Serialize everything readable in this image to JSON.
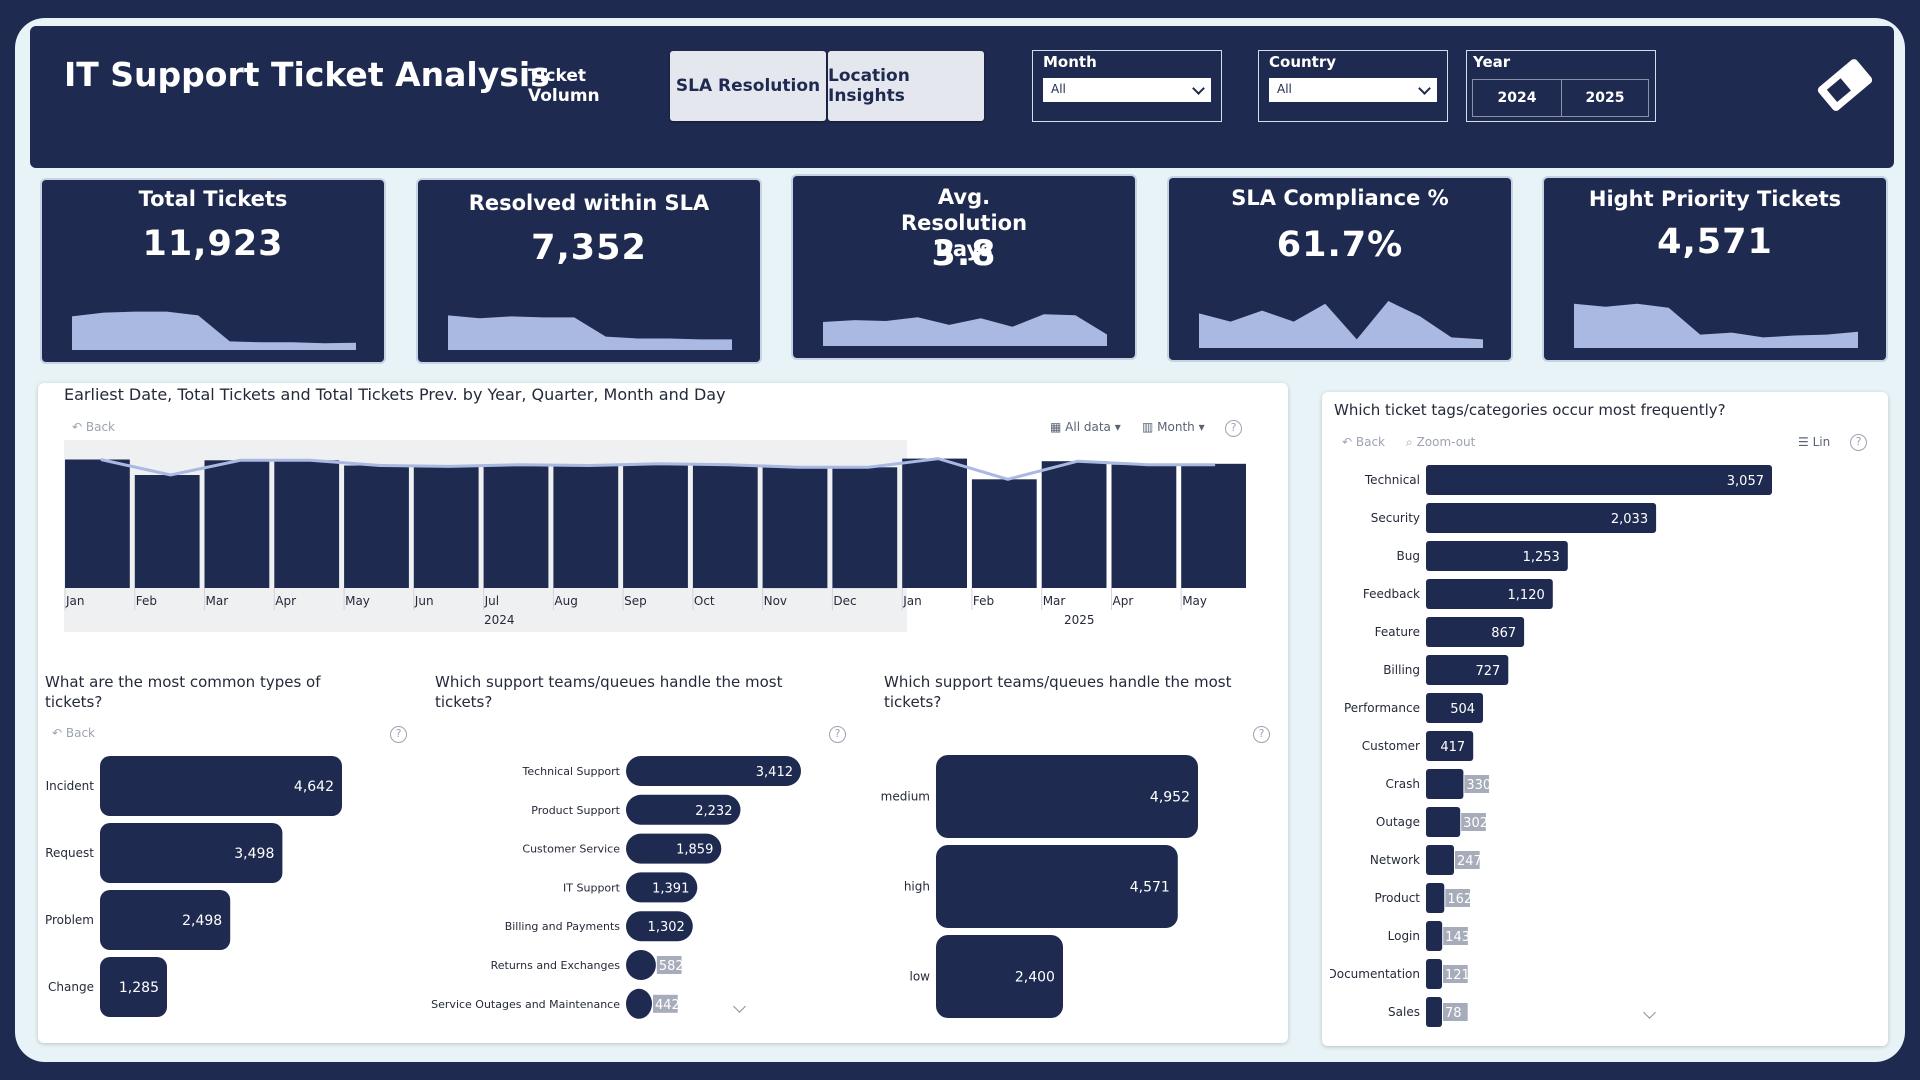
{
  "app": {
    "title": "IT Support Ticket Analysis"
  },
  "nav": {
    "ticket_volume": "Ticket Volumn",
    "sla_resolution": "SLA Resolution",
    "location_insights": "Location Insights"
  },
  "filters": {
    "month": {
      "label": "Month",
      "value": "All"
    },
    "country": {
      "label": "Country",
      "value": "All"
    },
    "year": {
      "label": "Year",
      "options": [
        "2024",
        "2025"
      ]
    }
  },
  "kpis": [
    {
      "title": "Total Tickets",
      "value": "11,923",
      "trend": [
        0.7,
        0.78,
        0.8,
        0.8,
        0.72,
        0.18,
        0.16,
        0.16,
        0.14,
        0.15
      ]
    },
    {
      "title": "Resolved within SLA",
      "value": "7,352",
      "trend": [
        0.72,
        0.66,
        0.7,
        0.68,
        0.68,
        0.28,
        0.24,
        0.24,
        0.22,
        0.22
      ]
    },
    {
      "title": "Avg. Resolution Days",
      "value": "3.8",
      "trend": [
        0.5,
        0.54,
        0.52,
        0.6,
        0.44,
        0.58,
        0.4,
        0.66,
        0.64,
        0.24
      ]
    },
    {
      "title": "SLA Compliance %",
      "value": "61.7%",
      "trend": [
        0.72,
        0.55,
        0.78,
        0.55,
        0.92,
        0.18,
        0.98,
        0.66,
        0.22,
        0.18
      ]
    },
    {
      "title": "Hight Priority Tickets",
      "value": "4,571",
      "trend": [
        0.92,
        0.86,
        0.92,
        0.84,
        0.28,
        0.32,
        0.22,
        0.26,
        0.28,
        0.34
      ]
    }
  ],
  "visual_controls": {
    "back": "Back",
    "zoom_out": "Zoom-out",
    "all_data": "All data",
    "month": "Month",
    "lin": "Lin",
    "help": "?"
  },
  "timeline": {
    "title": "Earliest Date, Total Tickets and Total Tickets Prev. by Year, Quarter, Month and Day",
    "year_labels": [
      "2024",
      "2025"
    ]
  },
  "common_types": {
    "title": "What are the most common types of tickets?"
  },
  "teams": {
    "title": "Which support teams/queues handle the most tickets?"
  },
  "priority": {
    "title": "Which support teams/queues handle the most tickets?"
  },
  "tags": {
    "title": "Which ticket tags/categories occur most frequently?"
  },
  "chart_data": [
    {
      "type": "bar",
      "categories": [
        "Jan",
        "Feb",
        "Mar",
        "Apr",
        "May",
        "Jun",
        "Jul",
        "Aug",
        "Sep",
        "Oct",
        "Nov",
        "Dec",
        "Jan",
        "Feb",
        "Mar",
        "Apr",
        "May"
      ],
      "series": [
        {
          "name": "Total Tickets",
          "values": [
            745,
            655,
            740,
            740,
            710,
            705,
            715,
            710,
            720,
            715,
            700,
            700,
            750,
            630,
            735,
            715,
            720
          ]
        },
        {
          "name": "Total Tickets Prev.",
          "values": [
            null,
            745,
            655,
            740,
            740,
            710,
            705,
            715,
            710,
            720,
            715,
            700,
            700,
            750,
            630,
            735,
            715
          ]
        }
      ],
      "xlabel": "",
      "ylabel": "",
      "grid": false
    },
    {
      "type": "bar",
      "title": "What are the most common types of tickets?",
      "categories": [
        "Incident",
        "Request",
        "Problem",
        "Change"
      ],
      "values": [
        4642,
        3498,
        2498,
        1285
      ],
      "value_labels": [
        "4,642",
        "3,498",
        "2,498",
        "1,285"
      ]
    },
    {
      "type": "bar",
      "title": "Which support teams/queues handle the most tickets?",
      "categories": [
        "Technical Support",
        "Product Support",
        "Customer Service",
        "IT Support",
        "Billing and Payments",
        "Returns and Exchanges",
        "Service Outages and Maintenance"
      ],
      "values": [
        3412,
        2232,
        1859,
        1391,
        1302,
        582,
        442
      ],
      "value_labels": [
        "3,412",
        "2,232",
        "1,859",
        "1,391",
        "1,302",
        "582",
        "442"
      ]
    },
    {
      "type": "bar",
      "title": "Which support teams/queues handle the most tickets?",
      "categories": [
        "medium",
        "high",
        "low"
      ],
      "values": [
        4952,
        4571,
        2400
      ],
      "value_labels": [
        "4,952",
        "4,571",
        "2,400"
      ]
    },
    {
      "type": "bar",
      "title": "Which ticket tags/categories occur most frequently?",
      "categories": [
        "Technical",
        "Security",
        "Bug",
        "Feedback",
        "Feature",
        "Billing",
        "Performance",
        "Customer",
        "Crash",
        "Outage",
        "Network",
        "Product",
        "Login",
        "Documentation",
        "Sales"
      ],
      "values": [
        3057,
        2033,
        1253,
        1120,
        867,
        727,
        504,
        417,
        330,
        302,
        247,
        162,
        143,
        121,
        78
      ],
      "value_labels": [
        "3,057",
        "2,033",
        "1,253",
        "1,120",
        "867",
        "727",
        "504",
        "417",
        "330",
        "302",
        "247",
        "162",
        "143",
        "121",
        "78"
      ]
    }
  ],
  "colors": {
    "navy": "#1f2a50",
    "canvas": "#e7f3f6",
    "sparkline": "#a9b9e1",
    "prev_line": "#a9b9e1",
    "gray_label": "#9da3b3"
  }
}
